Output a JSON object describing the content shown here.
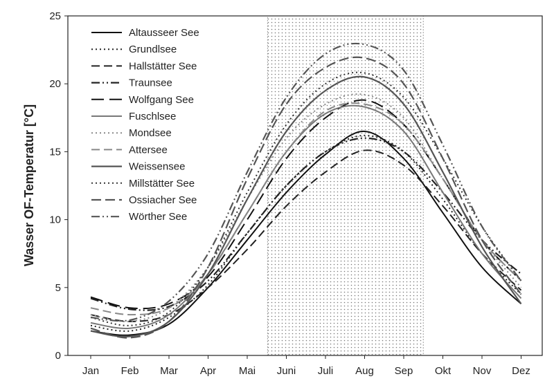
{
  "chart_data": {
    "type": "line",
    "title": "",
    "xlabel": "",
    "ylabel": "Wasser OF-Temperatur [°C]",
    "ylim": [
      0,
      25
    ],
    "yticks": [
      0,
      5,
      10,
      15,
      20,
      25
    ],
    "categories": [
      "Jan",
      "Feb",
      "Mar",
      "Apr",
      "Mai",
      "Juni",
      "Juli",
      "Aug",
      "Sep",
      "Okt",
      "Nov",
      "Dez"
    ],
    "highlight_range": [
      4.52,
      8.5
    ],
    "legend_position": "top-left",
    "grid": false,
    "series": [
      {
        "name": "Altausseer See",
        "color": "#111111",
        "dash": "",
        "width": 2,
        "values": [
          1.8,
          1.5,
          2.3,
          5.0,
          8.5,
          12.0,
          14.8,
          16.5,
          14.5,
          10.5,
          6.5,
          3.8
        ]
      },
      {
        "name": "Grundlsee",
        "color": "#222222",
        "dash": "2 4",
        "width": 2,
        "values": [
          2.2,
          1.8,
          2.8,
          5.2,
          9.0,
          12.5,
          15.0,
          16.2,
          15.0,
          11.5,
          7.5,
          4.5
        ]
      },
      {
        "name": "Hallstätter See",
        "color": "#222222",
        "dash": "12 6",
        "width": 2,
        "values": [
          3.0,
          2.5,
          3.0,
          5.0,
          7.8,
          11.0,
          13.5,
          15.1,
          14.0,
          11.0,
          7.5,
          4.8
        ]
      },
      {
        "name": "Traunsee",
        "color": "#222222",
        "dash": "12 4 2 4 2 4",
        "width": 2.2,
        "values": [
          4.2,
          3.4,
          3.6,
          5.5,
          9.0,
          12.5,
          15.0,
          16.0,
          15.0,
          12.0,
          8.5,
          6.0
        ]
      },
      {
        "name": "Wolfgang See",
        "color": "#111111",
        "dash": "18 8",
        "width": 2,
        "values": [
          4.3,
          3.5,
          3.8,
          5.8,
          10.0,
          14.5,
          17.5,
          18.8,
          17.0,
          13.0,
          8.5,
          5.5
        ]
      },
      {
        "name": "Fuschlsee",
        "color": "#777777",
        "dash": "",
        "width": 2,
        "values": [
          2.4,
          2.0,
          3.0,
          6.0,
          10.5,
          15.0,
          17.8,
          18.3,
          16.5,
          12.0,
          7.5,
          4.2
        ]
      },
      {
        "name": "Mondsee",
        "color": "#888888",
        "dash": "2 4",
        "width": 2,
        "values": [
          3.0,
          2.5,
          3.5,
          6.5,
          11.5,
          16.0,
          18.5,
          19.2,
          17.5,
          13.0,
          8.5,
          5.0
        ]
      },
      {
        "name": "Attersee",
        "color": "#888888",
        "dash": "12 6",
        "width": 2,
        "values": [
          3.5,
          3.0,
          3.5,
          6.0,
          10.5,
          15.0,
          18.0,
          18.5,
          17.0,
          13.0,
          8.5,
          5.5
        ]
      },
      {
        "name": "Weissensee",
        "color": "#555555",
        "dash": "",
        "width": 2.2,
        "values": [
          1.8,
          1.4,
          2.5,
          6.0,
          11.5,
          16.5,
          19.5,
          20.5,
          18.5,
          13.5,
          8.0,
          3.8
        ]
      },
      {
        "name": "Millstätter See",
        "color": "#333333",
        "dash": "2 4",
        "width": 2,
        "values": [
          2.8,
          2.2,
          3.2,
          6.5,
          12.0,
          17.0,
          20.0,
          20.8,
          19.0,
          14.5,
          9.5,
          5.5
        ]
      },
      {
        "name": "Ossiacher See",
        "color": "#555555",
        "dash": "14 6",
        "width": 2.2,
        "values": [
          2.0,
          1.3,
          2.5,
          6.5,
          13.0,
          18.5,
          21.2,
          21.9,
          20.0,
          14.5,
          8.5,
          4.5
        ]
      },
      {
        "name": "Wörther See",
        "color": "#555555",
        "dash": "12 4 2 4 2 4",
        "width": 2.2,
        "values": [
          2.8,
          2.6,
          4.0,
          7.5,
          13.5,
          19.0,
          22.2,
          22.9,
          21.0,
          15.5,
          9.5,
          5.5
        ]
      }
    ]
  }
}
